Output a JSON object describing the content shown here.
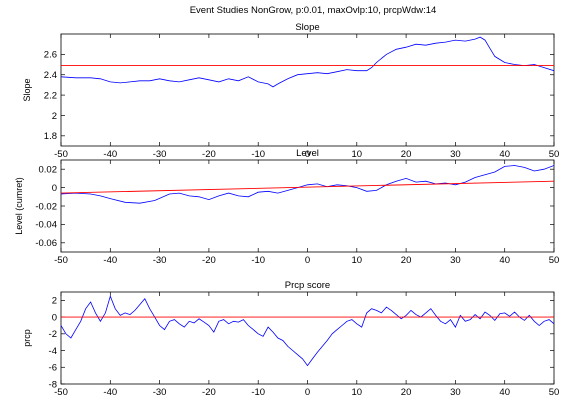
{
  "figure": {
    "suptitle": "Event Studies NonGrow, p:0.01, maxOvlp:10, prcpWdw:14"
  },
  "colors": {
    "series": "#0000ff",
    "reference": "#ff0000",
    "axes": "#000000"
  },
  "chart_data": [
    {
      "type": "line",
      "title": "Slope",
      "xlabel": "",
      "ylabel": "Slope",
      "xlim": [
        -50,
        50
      ],
      "ylim": [
        1.7,
        2.8
      ],
      "xticks": [
        -50,
        -40,
        -30,
        -20,
        -10,
        0,
        10,
        20,
        30,
        40,
        50
      ],
      "yticks": [
        1.8,
        2,
        2.2,
        2.4,
        2.6
      ],
      "grid": false,
      "series": [
        {
          "x": [
            -50,
            -47,
            -44,
            -42,
            -40,
            -38,
            -36,
            -34,
            -32,
            -30,
            -28,
            -26,
            -24,
            -22,
            -20,
            -18,
            -16,
            -14,
            -12,
            -10,
            -8,
            -7,
            -6,
            -4,
            -2,
            0,
            2,
            4,
            6,
            8,
            10,
            12,
            13,
            14,
            16,
            18,
            20,
            22,
            24,
            26,
            28,
            30,
            32,
            34,
            35,
            36,
            37,
            38,
            40,
            42,
            44,
            46,
            48,
            50
          ],
          "y": [
            2.38,
            2.37,
            2.37,
            2.36,
            2.33,
            2.32,
            2.33,
            2.34,
            2.34,
            2.36,
            2.34,
            2.33,
            2.35,
            2.37,
            2.35,
            2.33,
            2.36,
            2.34,
            2.38,
            2.33,
            2.31,
            2.28,
            2.31,
            2.36,
            2.4,
            2.41,
            2.42,
            2.41,
            2.43,
            2.45,
            2.44,
            2.44,
            2.47,
            2.52,
            2.6,
            2.65,
            2.67,
            2.7,
            2.69,
            2.71,
            2.72,
            2.74,
            2.73,
            2.75,
            2.77,
            2.74,
            2.66,
            2.58,
            2.52,
            2.5,
            2.49,
            2.5,
            2.47,
            2.44
          ]
        },
        {
          "x": [
            -50,
            50
          ],
          "y": [
            2.49,
            2.49
          ]
        }
      ]
    },
    {
      "type": "line",
      "title": "Level",
      "xlabel": "",
      "ylabel": "Level (cumret)",
      "xlim": [
        -50,
        50
      ],
      "ylim": [
        -0.07,
        0.03
      ],
      "xticks": [
        -50,
        -40,
        -30,
        -20,
        -10,
        0,
        10,
        20,
        30,
        40,
        50
      ],
      "yticks": [
        -0.06,
        -0.04,
        -0.02,
        0,
        0.02
      ],
      "grid": false,
      "series": [
        {
          "x": [
            -50,
            -47,
            -44,
            -42,
            -40,
            -37,
            -34,
            -31,
            -28,
            -26,
            -24,
            -22,
            -20,
            -18,
            -16,
            -14,
            -12,
            -10,
            -8,
            -6,
            -4,
            -2,
            0,
            2,
            4,
            6,
            8,
            10,
            12,
            14,
            16,
            18,
            20,
            22,
            24,
            26,
            28,
            30,
            32,
            34,
            36,
            38,
            40,
            42,
            44,
            46,
            48,
            50
          ],
          "y": [
            -0.007,
            -0.006,
            -0.007,
            -0.009,
            -0.012,
            -0.016,
            -0.017,
            -0.014,
            -0.007,
            -0.006,
            -0.009,
            -0.01,
            -0.013,
            -0.009,
            -0.006,
            -0.009,
            -0.01,
            -0.005,
            -0.004,
            -0.006,
            -0.003,
            0.0,
            0.003,
            0.004,
            0.001,
            0.003,
            0.002,
            0.0,
            -0.004,
            -0.003,
            0.003,
            0.007,
            0.01,
            0.006,
            0.007,
            0.004,
            0.005,
            0.003,
            0.006,
            0.011,
            0.014,
            0.017,
            0.023,
            0.024,
            0.022,
            0.018,
            0.02,
            0.024
          ]
        },
        {
          "x": [
            -50,
            50
          ],
          "y": [
            -0.006,
            0.007
          ]
        }
      ]
    },
    {
      "type": "line",
      "title": "Prcp score",
      "xlabel": "",
      "ylabel": "prcp",
      "xlim": [
        -50,
        50
      ],
      "ylim": [
        -8,
        3
      ],
      "xticks": [
        -50,
        -40,
        -30,
        -20,
        -10,
        0,
        10,
        20,
        30,
        40,
        50
      ],
      "yticks": [
        -8,
        -6,
        -4,
        -2,
        0,
        2
      ],
      "grid": false,
      "series": [
        {
          "x": [
            -50,
            -49,
            -48,
            -47,
            -46,
            -45,
            -44,
            -43,
            -42,
            -41,
            -40,
            -39,
            -38,
            -37,
            -36,
            -35,
            -34,
            -33,
            -32,
            -31,
            -30,
            -29,
            -28,
            -27,
            -26,
            -25,
            -24,
            -23,
            -22,
            -21,
            -20,
            -19,
            -18,
            -17,
            -16,
            -15,
            -14,
            -13,
            -12,
            -11,
            -10,
            -9,
            -8,
            -7,
            -6,
            -5,
            -4,
            -3,
            -2,
            -1,
            0,
            1,
            2,
            3,
            4,
            5,
            6,
            7,
            8,
            9,
            10,
            11,
            12,
            13,
            14,
            15,
            16,
            17,
            18,
            19,
            20,
            21,
            22,
            23,
            24,
            25,
            26,
            27,
            28,
            29,
            30,
            31,
            32,
            33,
            34,
            35,
            36,
            37,
            38,
            39,
            40,
            41,
            42,
            43,
            44,
            45,
            46,
            47,
            48,
            49,
            50
          ],
          "y": [
            -1.0,
            -2.0,
            -2.5,
            -1.5,
            -0.5,
            1.0,
            1.8,
            0.5,
            -0.5,
            0.5,
            2.5,
            1.0,
            0.2,
            0.5,
            0.3,
            0.8,
            1.5,
            2.2,
            1.0,
            0.0,
            -1.0,
            -1.5,
            -0.5,
            -0.3,
            -0.8,
            -1.2,
            -0.5,
            -0.7,
            -0.2,
            -0.6,
            -1.0,
            -1.8,
            -0.5,
            -0.3,
            -0.8,
            -0.5,
            -0.6,
            -0.3,
            -1.0,
            -1.5,
            -2.0,
            -2.3,
            -1.2,
            -1.8,
            -2.5,
            -2.8,
            -3.5,
            -4.0,
            -4.5,
            -5.0,
            -5.8,
            -5.0,
            -4.2,
            -3.5,
            -2.8,
            -2.0,
            -1.5,
            -1.0,
            -0.5,
            -0.3,
            -0.8,
            -1.2,
            0.5,
            1.0,
            0.8,
            0.5,
            1.2,
            0.8,
            0.3,
            -0.2,
            0.2,
            0.8,
            0.3,
            0.0,
            0.5,
            1.0,
            0.2,
            -0.5,
            -0.8,
            -0.3,
            -1.2,
            0.2,
            -0.5,
            -0.3,
            0.3,
            -0.2,
            0.6,
            0.2,
            -0.4,
            0.4,
            0.5,
            0.1,
            0.6,
            0.0,
            -0.4,
            0.2,
            -0.5,
            -1.0,
            -0.5,
            -0.3,
            -0.8
          ]
        },
        {
          "x": [
            -50,
            50
          ],
          "y": [
            0,
            0
          ]
        }
      ]
    }
  ]
}
